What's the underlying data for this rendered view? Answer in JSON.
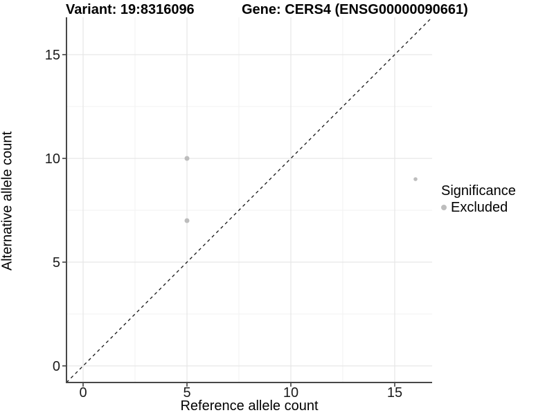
{
  "chart_data": {
    "type": "scatter",
    "title_left": "Variant: 19:8316096",
    "title_right": "Gene: CERS4 (ENSG00000090661)",
    "xlabel": "Reference allele count",
    "ylabel": "Alternative allele count",
    "xlim": [
      -0.8,
      16.8
    ],
    "ylim": [
      -0.8,
      16.8
    ],
    "x_ticks": [
      0,
      5,
      10,
      15
    ],
    "y_ticks": [
      0,
      5,
      10,
      15
    ],
    "minor_ticks": [
      2.5,
      7.5,
      12.5
    ],
    "grid": true,
    "points": [
      {
        "x": 5,
        "y": 10,
        "r": 3.5,
        "series": "Excluded"
      },
      {
        "x": 5,
        "y": 7,
        "r": 3.5,
        "series": "Excluded"
      },
      {
        "x": 16,
        "y": 9,
        "r": 2.8,
        "series": "Excluded"
      }
    ],
    "reference_line": {
      "type": "identity",
      "style": "dashed"
    },
    "legend": {
      "position": "right",
      "title": "Significance",
      "items": [
        {
          "label": "Excluded",
          "color": "#bdbdbd"
        }
      ]
    },
    "colors": {
      "point": "#bdbdbd",
      "grid_major": "#e6e6e6",
      "grid_minor": "#f2f2f2",
      "axis_line": "#474747",
      "tick_mark": "#333333",
      "tick_text": "#1a1a1a",
      "dashed_line": "#141414"
    }
  }
}
